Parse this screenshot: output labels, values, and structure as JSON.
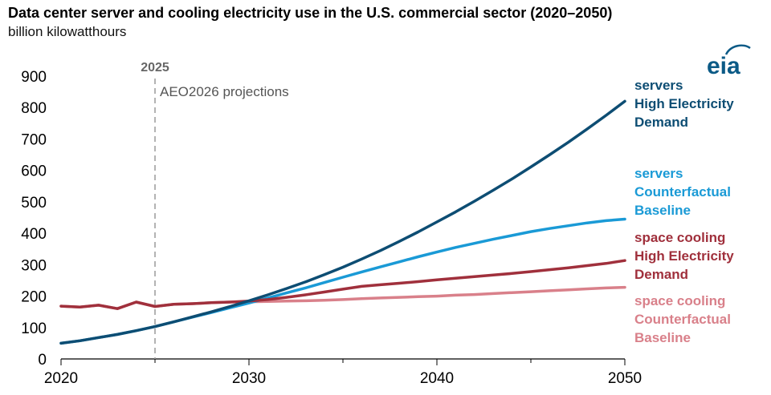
{
  "header": {
    "title": "Data center server and cooling electricity use in the U.S. commercial sector (2020–2050)",
    "subtitle": "billion kilowatthours"
  },
  "logo": {
    "text": "eia",
    "color": "#0b5a86",
    "icon": "eia-logo"
  },
  "chart_data": {
    "type": "line",
    "title": "Data center server and cooling electricity use in the U.S. commercial sector (2020–2050)",
    "ylabel": "billion kilowatthours",
    "xlabel": "",
    "xlim": [
      2020,
      2050
    ],
    "ylim": [
      0,
      900
    ],
    "xticks": [
      "2020",
      "2030",
      "2040",
      "2050"
    ],
    "yticks": [
      "0",
      "100",
      "200",
      "300",
      "400",
      "500",
      "600",
      "700",
      "800",
      "900"
    ],
    "grid": false,
    "legend": "right, inline labels at line ends",
    "marker": {
      "year": 2025,
      "label": "2025",
      "text": "AEO2026 projections"
    },
    "series": [
      {
        "name": "servers High Electricity Demand",
        "label_lines": [
          "servers",
          "High Electricity",
          "Demand"
        ],
        "color": "#0d4d73",
        "x": [
          2020,
          2021,
          2022,
          2023,
          2024,
          2025,
          2026,
          2027,
          2028,
          2029,
          2030,
          2031,
          2032,
          2033,
          2034,
          2035,
          2036,
          2037,
          2038,
          2039,
          2040,
          2041,
          2042,
          2043,
          2044,
          2045,
          2046,
          2047,
          2048,
          2049,
          2050
        ],
        "values": [
          50,
          58,
          68,
          78,
          90,
          103,
          118,
          134,
          150,
          167,
          185,
          204,
          224,
          245,
          268,
          292,
          318,
          345,
          374,
          404,
          436,
          468,
          502,
          537,
          573,
          611,
          650,
          690,
          732,
          775,
          820
        ]
      },
      {
        "name": "servers Counterfactual Baseline",
        "label_lines": [
          "servers",
          "Counterfactual",
          "Baseline"
        ],
        "color": "#1a9ad6",
        "x": [
          2020,
          2021,
          2022,
          2023,
          2024,
          2025,
          2026,
          2027,
          2028,
          2029,
          2030,
          2031,
          2032,
          2033,
          2034,
          2035,
          2036,
          2037,
          2038,
          2039,
          2040,
          2041,
          2042,
          2043,
          2044,
          2045,
          2046,
          2047,
          2048,
          2049,
          2050
        ],
        "values": [
          50,
          58,
          68,
          78,
          90,
          103,
          118,
          133,
          148,
          163,
          178,
          194,
          210,
          226,
          243,
          260,
          277,
          293,
          309,
          325,
          340,
          355,
          368,
          381,
          393,
          405,
          415,
          424,
          433,
          440,
          445
        ]
      },
      {
        "name": "space cooling High Electricity Demand",
        "label_lines": [
          "space cooling",
          "High Electricity",
          "Demand"
        ],
        "color": "#a0303c",
        "x": [
          2020,
          2021,
          2022,
          2023,
          2024,
          2025,
          2026,
          2027,
          2028,
          2029,
          2030,
          2031,
          2032,
          2033,
          2034,
          2035,
          2036,
          2037,
          2038,
          2039,
          2040,
          2041,
          2042,
          2043,
          2044,
          2045,
          2046,
          2047,
          2048,
          2049,
          2050
        ],
        "values": [
          168,
          165,
          171,
          160,
          181,
          167,
          174,
          176,
          179,
          181,
          184,
          189,
          196,
          204,
          213,
          222,
          231,
          236,
          241,
          246,
          252,
          257,
          262,
          267,
          272,
          278,
          284,
          290,
          297,
          304,
          313
        ]
      },
      {
        "name": "space cooling Counterfactual Baseline",
        "label_lines": [
          "space cooling",
          "Counterfactual",
          "Baseline"
        ],
        "color": "#d9808a",
        "x": [
          2020,
          2021,
          2022,
          2023,
          2024,
          2025,
          2026,
          2027,
          2028,
          2029,
          2030,
          2031,
          2032,
          2033,
          2034,
          2035,
          2036,
          2037,
          2038,
          2039,
          2040,
          2041,
          2042,
          2043,
          2044,
          2045,
          2046,
          2047,
          2048,
          2049,
          2050
        ],
        "values": [
          168,
          165,
          171,
          160,
          181,
          167,
          174,
          176,
          179,
          181,
          182,
          183,
          184,
          185,
          187,
          189,
          192,
          194,
          196,
          198,
          200,
          203,
          205,
          208,
          211,
          214,
          217,
          220,
          223,
          226,
          228
        ]
      }
    ]
  }
}
